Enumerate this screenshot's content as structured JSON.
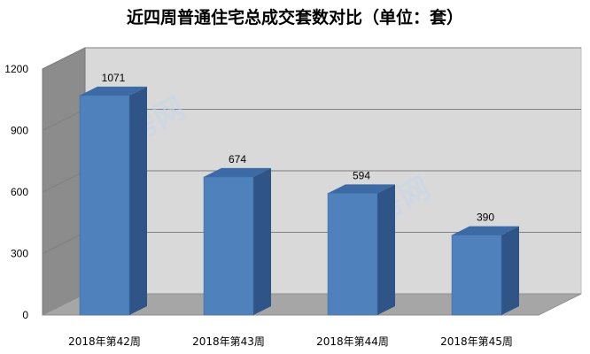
{
  "chart_data": {
    "type": "bar",
    "title": "近四周普通住宅总成交套数对比（单位：套）",
    "categories": [
      "2018年第42周",
      "2018年第43周",
      "2018年第44周",
      "2018年第45周"
    ],
    "values": [
      1071,
      674,
      594,
      390
    ],
    "ylim": [
      0,
      1200
    ],
    "yticks": [
      0,
      300,
      600,
      900,
      1200
    ],
    "grid": true,
    "legend": "none",
    "colors": {
      "bar_front": "#4f81bd",
      "bar_side": "#2f5487",
      "bar_top": "#3b6aa5",
      "back_wall": "#d9d9d9",
      "side_wall": "#8c8c8c",
      "floor": "#a6a6a6",
      "gridline": "#808080"
    }
  },
  "watermark": "GO房网"
}
